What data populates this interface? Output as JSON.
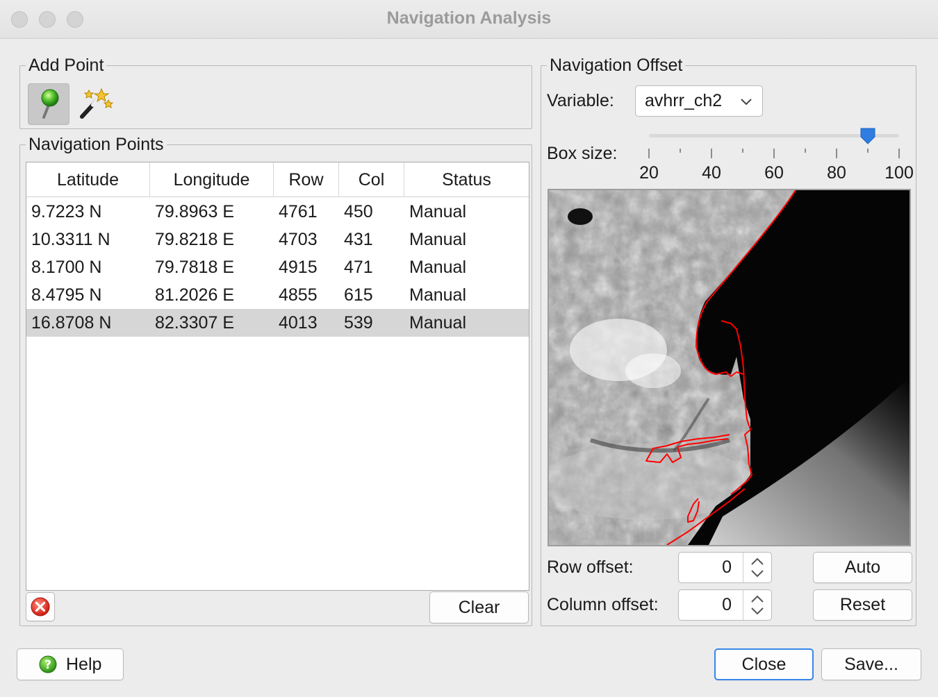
{
  "window": {
    "title": "Navigation Analysis"
  },
  "add_point": {
    "legend": "Add Point",
    "tools": [
      {
        "icon": "map-pin-icon",
        "active": true
      },
      {
        "icon": "magic-wand-icon",
        "active": false
      }
    ]
  },
  "nav_points": {
    "legend": "Navigation Points",
    "columns": [
      "Latitude",
      "Longitude",
      "Row",
      "Col",
      "Status"
    ],
    "rows": [
      {
        "lat": "9.7223 N",
        "lon": "79.8963 E",
        "row": "4761",
        "col": "450",
        "status": "Manual"
      },
      {
        "lat": "10.3311 N",
        "lon": "79.8218 E",
        "row": "4703",
        "col": "431",
        "status": "Manual"
      },
      {
        "lat": "8.1700 N",
        "lon": "79.7818 E",
        "row": "4915",
        "col": "471",
        "status": "Manual"
      },
      {
        "lat": "8.4795 N",
        "lon": "81.2026 E",
        "row": "4855",
        "col": "615",
        "status": "Manual"
      },
      {
        "lat": "16.8708 N",
        "lon": "82.3307 E",
        "row": "4013",
        "col": "539",
        "status": "Manual",
        "selected": true
      }
    ],
    "delete_icon": "delete-icon",
    "clear_label": "Clear"
  },
  "nav_offset": {
    "legend": "Navigation Offset",
    "variable_label": "Variable:",
    "variable_value": "avhrr_ch2",
    "box_size_label": "Box size:",
    "box_size_value": 90,
    "slider_min": 20,
    "slider_max": 100,
    "tick_labels": [
      "20",
      "40",
      "60",
      "80",
      "100"
    ],
    "row_offset_label": "Row offset:",
    "row_offset_value": "0",
    "col_offset_label": "Column offset:",
    "col_offset_value": "0",
    "auto_label": "Auto",
    "reset_label": "Reset",
    "accent": "#2f7de1",
    "coastline_color": "#ff0000"
  },
  "footer": {
    "help_label": "Help",
    "close_label": "Close",
    "save_label": "Save..."
  }
}
